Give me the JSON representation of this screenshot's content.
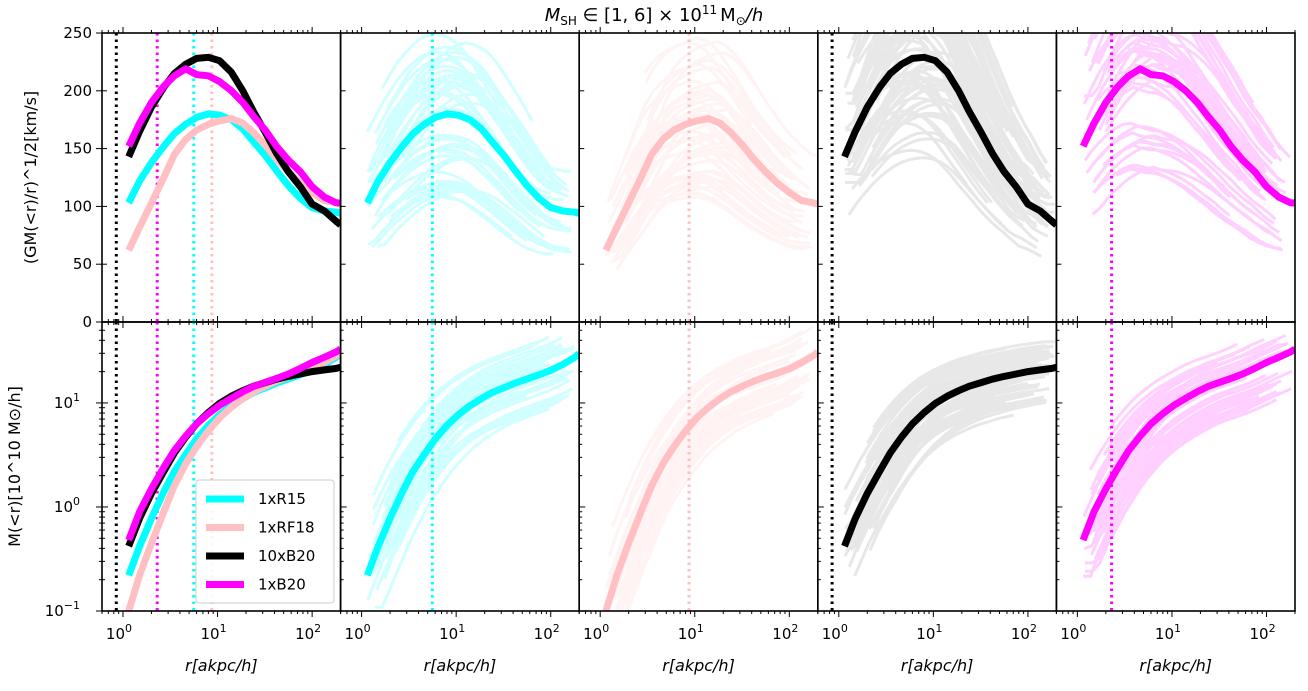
{
  "figure": {
    "title_prefix": "M",
    "title_sub": "SH",
    "title_mid": " ∈ [1, 6] × 10",
    "title_sup": "11",
    "title_suffix": "M",
    "title_sun": "⊙",
    "title_end": "/h"
  },
  "chart_data": {
    "type": "line",
    "layout": "2 rows x 5 columns, shared axes",
    "x_scale": "log",
    "xlim": [
      0.6,
      200
    ],
    "xlabel": "r[akpc/h]",
    "top_row": {
      "ylabel": "(GM(<r)/r)^1/2[km/s]",
      "y_scale": "linear",
      "ylim": [
        0,
        250
      ],
      "yticks": [
        "0",
        "50",
        "100",
        "150",
        "200",
        "250"
      ]
    },
    "bottom_row": {
      "ylabel": "M(<r)[10^10 M⊙/h]",
      "y_scale": "log",
      "ylim": [
        0.1,
        60
      ],
      "yticks": [
        "10^-1",
        "10^0",
        "10^1"
      ]
    },
    "x_ticks": [
      "10^0",
      "10^1",
      "10^2"
    ],
    "legend": {
      "placement": "lower-right of first bottom panel",
      "entries": [
        "1xR15",
        "1xRF18",
        "10xB20",
        "1xB20"
      ]
    },
    "series": [
      {
        "name": "1xR15",
        "color": "#00ffff",
        "convergence_radius": 5.6,
        "x": [
          1.15,
          1.5,
          2,
          2.7,
          3.5,
          4.6,
          6,
          8,
          10.5,
          14,
          18.5,
          24,
          32,
          42,
          56,
          75,
          100,
          135,
          180,
          200
        ],
        "vcirc": [
          103,
          122,
          138,
          152,
          163,
          171,
          177,
          180,
          179,
          175,
          167,
          156,
          144,
          131,
          118,
          107,
          99,
          96,
          95,
          94
        ],
        "mass": [
          0.22,
          0.42,
          0.78,
          1.4,
          2.2,
          3.2,
          4.5,
          6.1,
          7.7,
          9.4,
          11.0,
          12.6,
          14.0,
          15.5,
          17.0,
          18.7,
          20.6,
          23.5,
          27.5,
          30
        ]
      },
      {
        "name": "1xRF18",
        "color": "#ffbfc3",
        "convergence_radius": 8.7,
        "x": [
          1.15,
          1.5,
          2,
          2.7,
          3.5,
          4.6,
          6,
          8,
          10.5,
          14,
          18.5,
          24,
          32,
          42,
          56,
          75,
          100,
          135,
          180,
          200
        ],
        "vcirc": [
          62,
          82,
          103,
          125,
          145,
          158,
          166,
          171,
          174,
          176,
          172,
          164,
          153,
          141,
          130,
          120,
          112,
          105,
          103,
          102
        ],
        "mass": [
          0.1,
          0.22,
          0.45,
          0.9,
          1.6,
          2.6,
          3.8,
          5.4,
          7.2,
          9.1,
          11.0,
          12.8,
          14.5,
          16.2,
          17.8,
          19.4,
          21.3,
          24.5,
          28.5,
          31
        ]
      },
      {
        "name": "10xB20",
        "color": "#000000",
        "convergence_radius": 0.85,
        "x": [
          1.15,
          1.5,
          2,
          2.7,
          3.5,
          4.6,
          6,
          8,
          10.5,
          14,
          18.5,
          24,
          32,
          42,
          56,
          75,
          100,
          135,
          180,
          200
        ],
        "vcirc": [
          143,
          165,
          186,
          203,
          215,
          223,
          228,
          229,
          226,
          216,
          200,
          182,
          164,
          146,
          130,
          117,
          102,
          96,
          87,
          84
        ],
        "mass": [
          0.42,
          0.78,
          1.35,
          2.2,
          3.3,
          4.7,
          6.3,
          8.1,
          9.9,
          11.6,
          13.1,
          14.5,
          15.7,
          16.9,
          18.0,
          19.0,
          20.0,
          20.8,
          21.5,
          22
        ]
      },
      {
        "name": "1xB20",
        "color": "#ff00ff",
        "convergence_radius": 2.3,
        "x": [
          1.15,
          1.5,
          2,
          2.7,
          3.5,
          4.6,
          6,
          8,
          10.5,
          14,
          18.5,
          24,
          32,
          42,
          56,
          75,
          100,
          135,
          180,
          200
        ],
        "vcirc": [
          152,
          172,
          190,
          204,
          213,
          219,
          214,
          213,
          208,
          200,
          190,
          178,
          166,
          152,
          140,
          130,
          117,
          108,
          103,
          103
        ],
        "mass": [
          0.48,
          0.9,
          1.5,
          2.4,
          3.5,
          4.8,
          6.3,
          7.9,
          9.5,
          11.1,
          12.8,
          14.4,
          15.8,
          17.2,
          19.0,
          21.5,
          24.5,
          27.5,
          31.0,
          33
        ]
      }
    ]
  }
}
